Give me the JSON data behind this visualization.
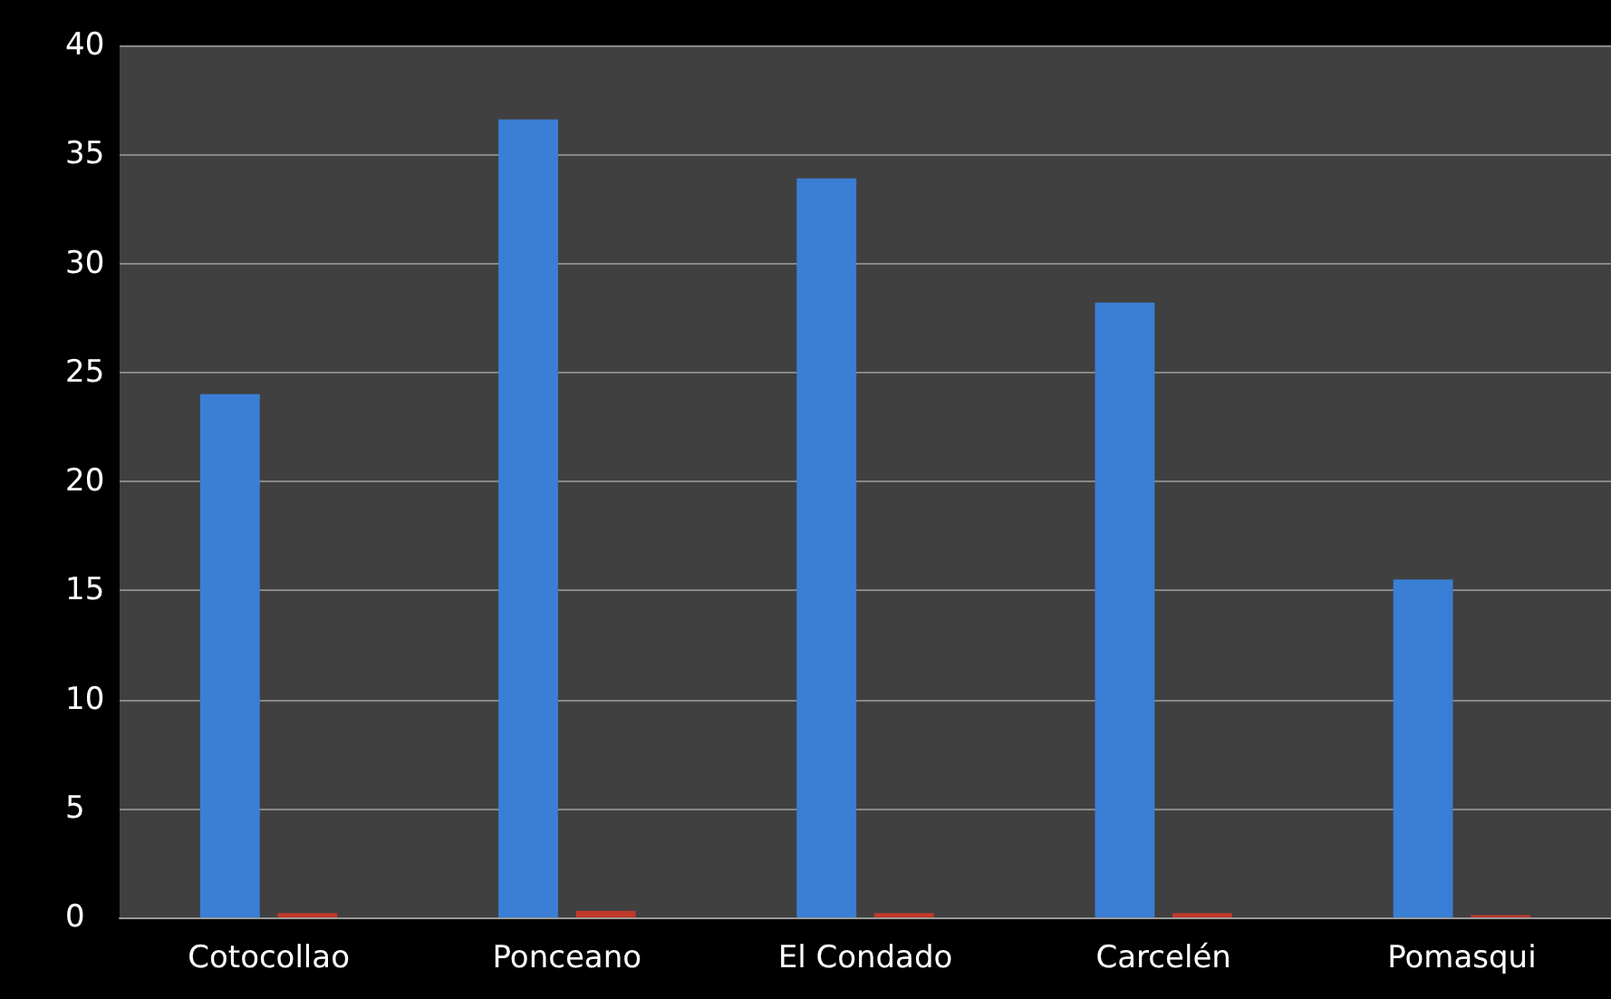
{
  "chart_data": {
    "type": "bar",
    "categories": [
      "Cotocollao",
      "Ponceano",
      "El Condado",
      "Carcelén",
      "Pomasqui"
    ],
    "series": [
      {
        "color": "#3a7fd5",
        "values": [
          24,
          36.6,
          33.9,
          28.2,
          15.5
        ]
      },
      {
        "color": "#c0392b",
        "values": [
          0.2,
          0.3,
          0.2,
          0.2,
          0.1
        ]
      }
    ],
    "ylim": [
      0,
      40
    ],
    "yticks": [
      0,
      5,
      10,
      15,
      20,
      25,
      30,
      35,
      40
    ],
    "grid": "y"
  }
}
